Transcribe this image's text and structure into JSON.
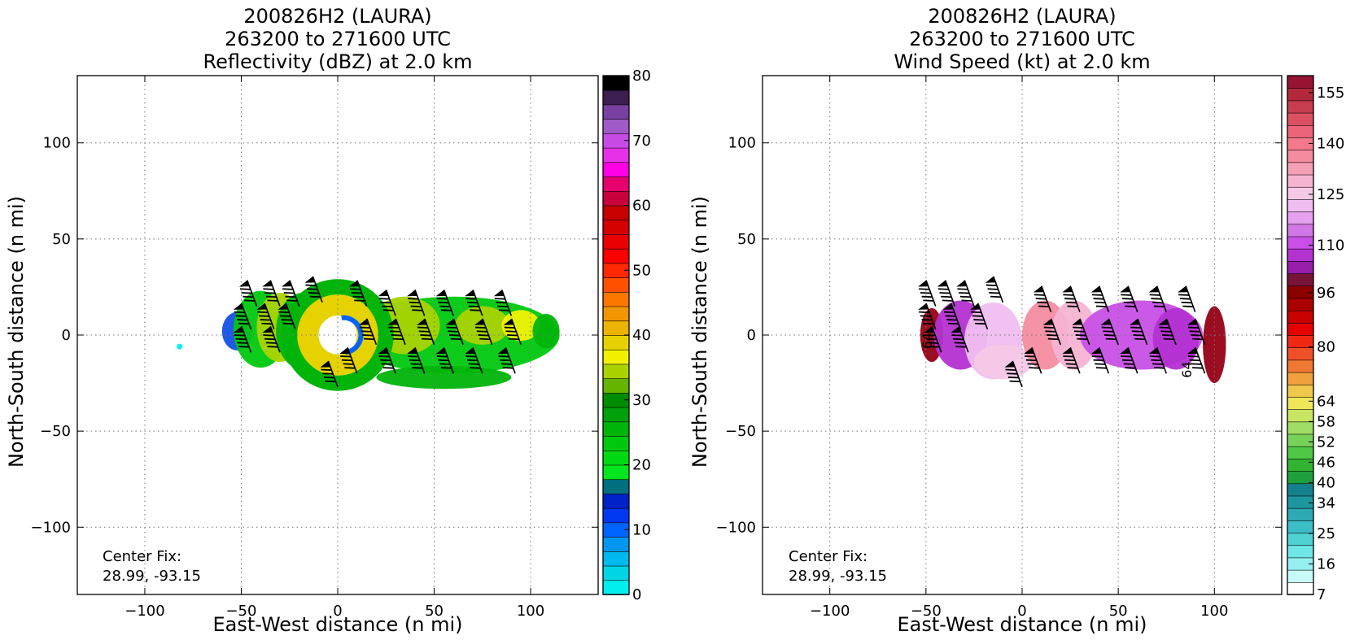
{
  "chart_data": [
    {
      "type": "heatmap",
      "title_lines": [
        "200826H2 (LAURA)",
        "263200 to 271600 UTC",
        "Reflectivity (dBZ) at 2.0 km"
      ],
      "xlabel": "East-West distance (n mi)",
      "ylabel": "North-South distance (n mi)",
      "xlim": [
        -135,
        135
      ],
      "ylim": [
        -135,
        135
      ],
      "xticks": [
        -100,
        -50,
        0,
        50,
        100
      ],
      "yticks": [
        -100,
        -50,
        0,
        50,
        100
      ],
      "xtick_labels": [
        "−100",
        "−50",
        "0",
        "50",
        "100"
      ],
      "ytick_labels": [
        "−100",
        "−50",
        "0",
        "50",
        "100"
      ],
      "grid": true,
      "annotation_lines": [
        "Center Fix:",
        "28.99, -93.15"
      ],
      "colorbar": {
        "label_values": [
          0,
          10,
          20,
          30,
          40,
          50,
          60,
          70,
          80
        ],
        "labels": [
          "0",
          "10",
          "20",
          "30",
          "40",
          "50",
          "60",
          "70",
          "80"
        ],
        "colors": [
          "#00eeee",
          "#00d6e6",
          "#00b9ee",
          "#0096f2",
          "#0064ff",
          "#0038f2",
          "#0022c8",
          "#007080",
          "#00e61e",
          "#00d814",
          "#00c80f",
          "#00b40a",
          "#00a00a",
          "#008c00",
          "#66b400",
          "#aad200",
          "#f2f200",
          "#e6d200",
          "#ecb400",
          "#f29600",
          "#fa7800",
          "#ff5000",
          "#ff2800",
          "#ff0000",
          "#ea0000",
          "#d60000",
          "#c80000",
          "#c8003c",
          "#e6006e",
          "#ff00e6",
          "#e632e6",
          "#c84be6",
          "#a05ac8",
          "#7840a0",
          "#3c1e50",
          "#000000"
        ],
        "range": [
          0,
          80
        ]
      },
      "field": [
        {
          "x": -52,
          "y": 2,
          "rx": 8,
          "ry": 10,
          "color": "#1450e6"
        },
        {
          "x": -40,
          "y": 3,
          "rx": 14,
          "ry": 20,
          "color": "#00c80f"
        },
        {
          "x": -30,
          "y": 4,
          "rx": 12,
          "ry": 18,
          "color": "#aad200"
        },
        {
          "x": -18,
          "y": 2,
          "rx": 14,
          "ry": 20,
          "color": "#00b40a"
        },
        {
          "x": 60,
          "y": 0,
          "rx": 55,
          "ry": 20,
          "color": "#00c80f"
        },
        {
          "x": 35,
          "y": 5,
          "rx": 18,
          "ry": 15,
          "color": "#aad200"
        },
        {
          "x": 75,
          "y": 5,
          "rx": 14,
          "ry": 10,
          "color": "#aad200"
        },
        {
          "x": 95,
          "y": 5,
          "rx": 10,
          "ry": 8,
          "color": "#f2f200"
        },
        {
          "x": 108,
          "y": 2,
          "rx": 7,
          "ry": 9,
          "color": "#00b40a"
        },
        {
          "x": 55,
          "y": -22,
          "rx": 35,
          "ry": 6,
          "color": "#00b40a"
        },
        {
          "x": -82,
          "y": -6,
          "rx": 1.5,
          "ry": 1.5,
          "color": "#00eeee"
        }
      ],
      "ring": {
        "x": 0,
        "y": 0,
        "r_outer": 21,
        "r_inner": 10,
        "color": "#e6d200",
        "outer_color": "#00b40a",
        "inner_color": "#0064ff"
      },
      "barbs": [
        {
          "x": -42,
          "y": 15
        },
        {
          "x": -30,
          "y": 15
        },
        {
          "x": -20,
          "y": 15
        },
        {
          "x": -8,
          "y": 17
        },
        {
          "x": -45,
          "y": 3
        },
        {
          "x": -33,
          "y": 3
        },
        {
          "x": -22,
          "y": 3
        },
        {
          "x": -45,
          "y": -9
        },
        {
          "x": -30,
          "y": -9
        },
        {
          "x": 15,
          "y": 15
        },
        {
          "x": 30,
          "y": 10
        },
        {
          "x": 45,
          "y": 10
        },
        {
          "x": 60,
          "y": 10
        },
        {
          "x": 75,
          "y": 10
        },
        {
          "x": 90,
          "y": 10
        },
        {
          "x": 20,
          "y": -5
        },
        {
          "x": 35,
          "y": -5
        },
        {
          "x": 50,
          "y": -5
        },
        {
          "x": 65,
          "y": -5
        },
        {
          "x": 80,
          "y": -5
        },
        {
          "x": 95,
          "y": -5
        },
        {
          "x": 10,
          "y": -20
        },
        {
          "x": 30,
          "y": -20
        },
        {
          "x": 45,
          "y": -20
        },
        {
          "x": 60,
          "y": -20
        },
        {
          "x": 75,
          "y": -20
        },
        {
          "x": 92,
          "y": -20
        },
        {
          "x": 0,
          "y": -27
        }
      ]
    },
    {
      "type": "heatmap",
      "title_lines": [
        "200826H2 (LAURA)",
        "263200 to 271600 UTC",
        "Wind Speed (kt) at 2.0 km"
      ],
      "xlabel": "East-West distance (n mi)",
      "ylabel": "North-South distance (n mi)",
      "xlim": [
        -135,
        135
      ],
      "ylim": [
        -135,
        135
      ],
      "xticks": [
        -100,
        -50,
        0,
        50,
        100
      ],
      "yticks": [
        -100,
        -50,
        0,
        50,
        100
      ],
      "xtick_labels": [
        "−100",
        "−50",
        "0",
        "50",
        "100"
      ],
      "ytick_labels": [
        "−100",
        "−50",
        "0",
        "50",
        "100"
      ],
      "grid": true,
      "annotation_lines": [
        "Center Fix:",
        "28.99, -93.15"
      ],
      "contour_labels": [
        "64",
        "64"
      ],
      "colorbar": {
        "label_values": [
          7,
          16,
          25,
          34,
          40,
          46,
          52,
          58,
          64,
          80,
          96,
          110,
          125,
          140,
          155
        ],
        "labels": [
          "7",
          "16",
          "25",
          "34",
          "40",
          "46",
          "52",
          "58",
          "64",
          "80",
          "96",
          "110",
          "125",
          "140",
          "155"
        ],
        "colors": [
          "#ffffff",
          "#c8fafa",
          "#96f0f0",
          "#6ee6e6",
          "#50d2d2",
          "#3cbec8",
          "#2daab4",
          "#1e96a0",
          "#14828c",
          "#1ea03c",
          "#32b432",
          "#50c846",
          "#78d25a",
          "#a0dc64",
          "#c8e664",
          "#f0e65a",
          "#f0c84b",
          "#f0a03c",
          "#f07832",
          "#f05028",
          "#f02814",
          "#e60000",
          "#c80000",
          "#aa0000",
          "#8c0000",
          "#781438",
          "#961eaa",
          "#b432d2",
          "#c850e6",
          "#d278e6",
          "#e6a0f0",
          "#f0bef0",
          "#f5c8e6",
          "#f5b4d2",
          "#f5a0b4",
          "#f58ca0",
          "#f5788c",
          "#eb6478",
          "#dc5064",
          "#c83c50",
          "#b4283c",
          "#961432"
        ],
        "range": [
          7,
          160
        ]
      },
      "field": [
        {
          "x": -47,
          "y": 0,
          "rx": 6,
          "ry": 14,
          "color": "#960014"
        },
        {
          "x": -32,
          "y": 0,
          "rx": 14,
          "ry": 18,
          "color": "#b432d2"
        },
        {
          "x": -15,
          "y": -3,
          "rx": 15,
          "ry": 20,
          "color": "#f0bef0"
        },
        {
          "x": -10,
          "y": -14,
          "rx": 15,
          "ry": 9,
          "color": "#f5c8e6"
        },
        {
          "x": 12,
          "y": 0,
          "rx": 12,
          "ry": 18,
          "color": "#f58ca0"
        },
        {
          "x": 27,
          "y": 0,
          "rx": 12,
          "ry": 18,
          "color": "#f5b4d2"
        },
        {
          "x": 62,
          "y": 0,
          "rx": 32,
          "ry": 18,
          "color": "#c850e6"
        },
        {
          "x": 80,
          "y": -2,
          "rx": 12,
          "ry": 16,
          "color": "#b432d2"
        },
        {
          "x": 100,
          "y": -5,
          "rx": 6,
          "ry": 20,
          "color": "#960014"
        }
      ],
      "ring": null,
      "barbs": [
        {
          "x": -45,
          "y": 15
        },
        {
          "x": -35,
          "y": 15
        },
        {
          "x": -25,
          "y": 15
        },
        {
          "x": -10,
          "y": 17
        },
        {
          "x": -45,
          "y": 3
        },
        {
          "x": -32,
          "y": 3
        },
        {
          "x": -18,
          "y": 3
        },
        {
          "x": -42,
          "y": -9
        },
        {
          "x": -28,
          "y": -9
        },
        {
          "x": 15,
          "y": 12
        },
        {
          "x": 30,
          "y": 12
        },
        {
          "x": 45,
          "y": 12
        },
        {
          "x": 60,
          "y": 12
        },
        {
          "x": 75,
          "y": 12
        },
        {
          "x": 90,
          "y": 12
        },
        {
          "x": 20,
          "y": -5
        },
        {
          "x": 35,
          "y": -5
        },
        {
          "x": 50,
          "y": -5
        },
        {
          "x": 65,
          "y": -5
        },
        {
          "x": 80,
          "y": -5
        },
        {
          "x": 95,
          "y": -5
        },
        {
          "x": 10,
          "y": -20
        },
        {
          "x": 30,
          "y": -20
        },
        {
          "x": 45,
          "y": -20
        },
        {
          "x": 60,
          "y": -20
        },
        {
          "x": 75,
          "y": -20
        },
        {
          "x": 95,
          "y": -20
        },
        {
          "x": 0,
          "y": -27
        }
      ]
    }
  ]
}
